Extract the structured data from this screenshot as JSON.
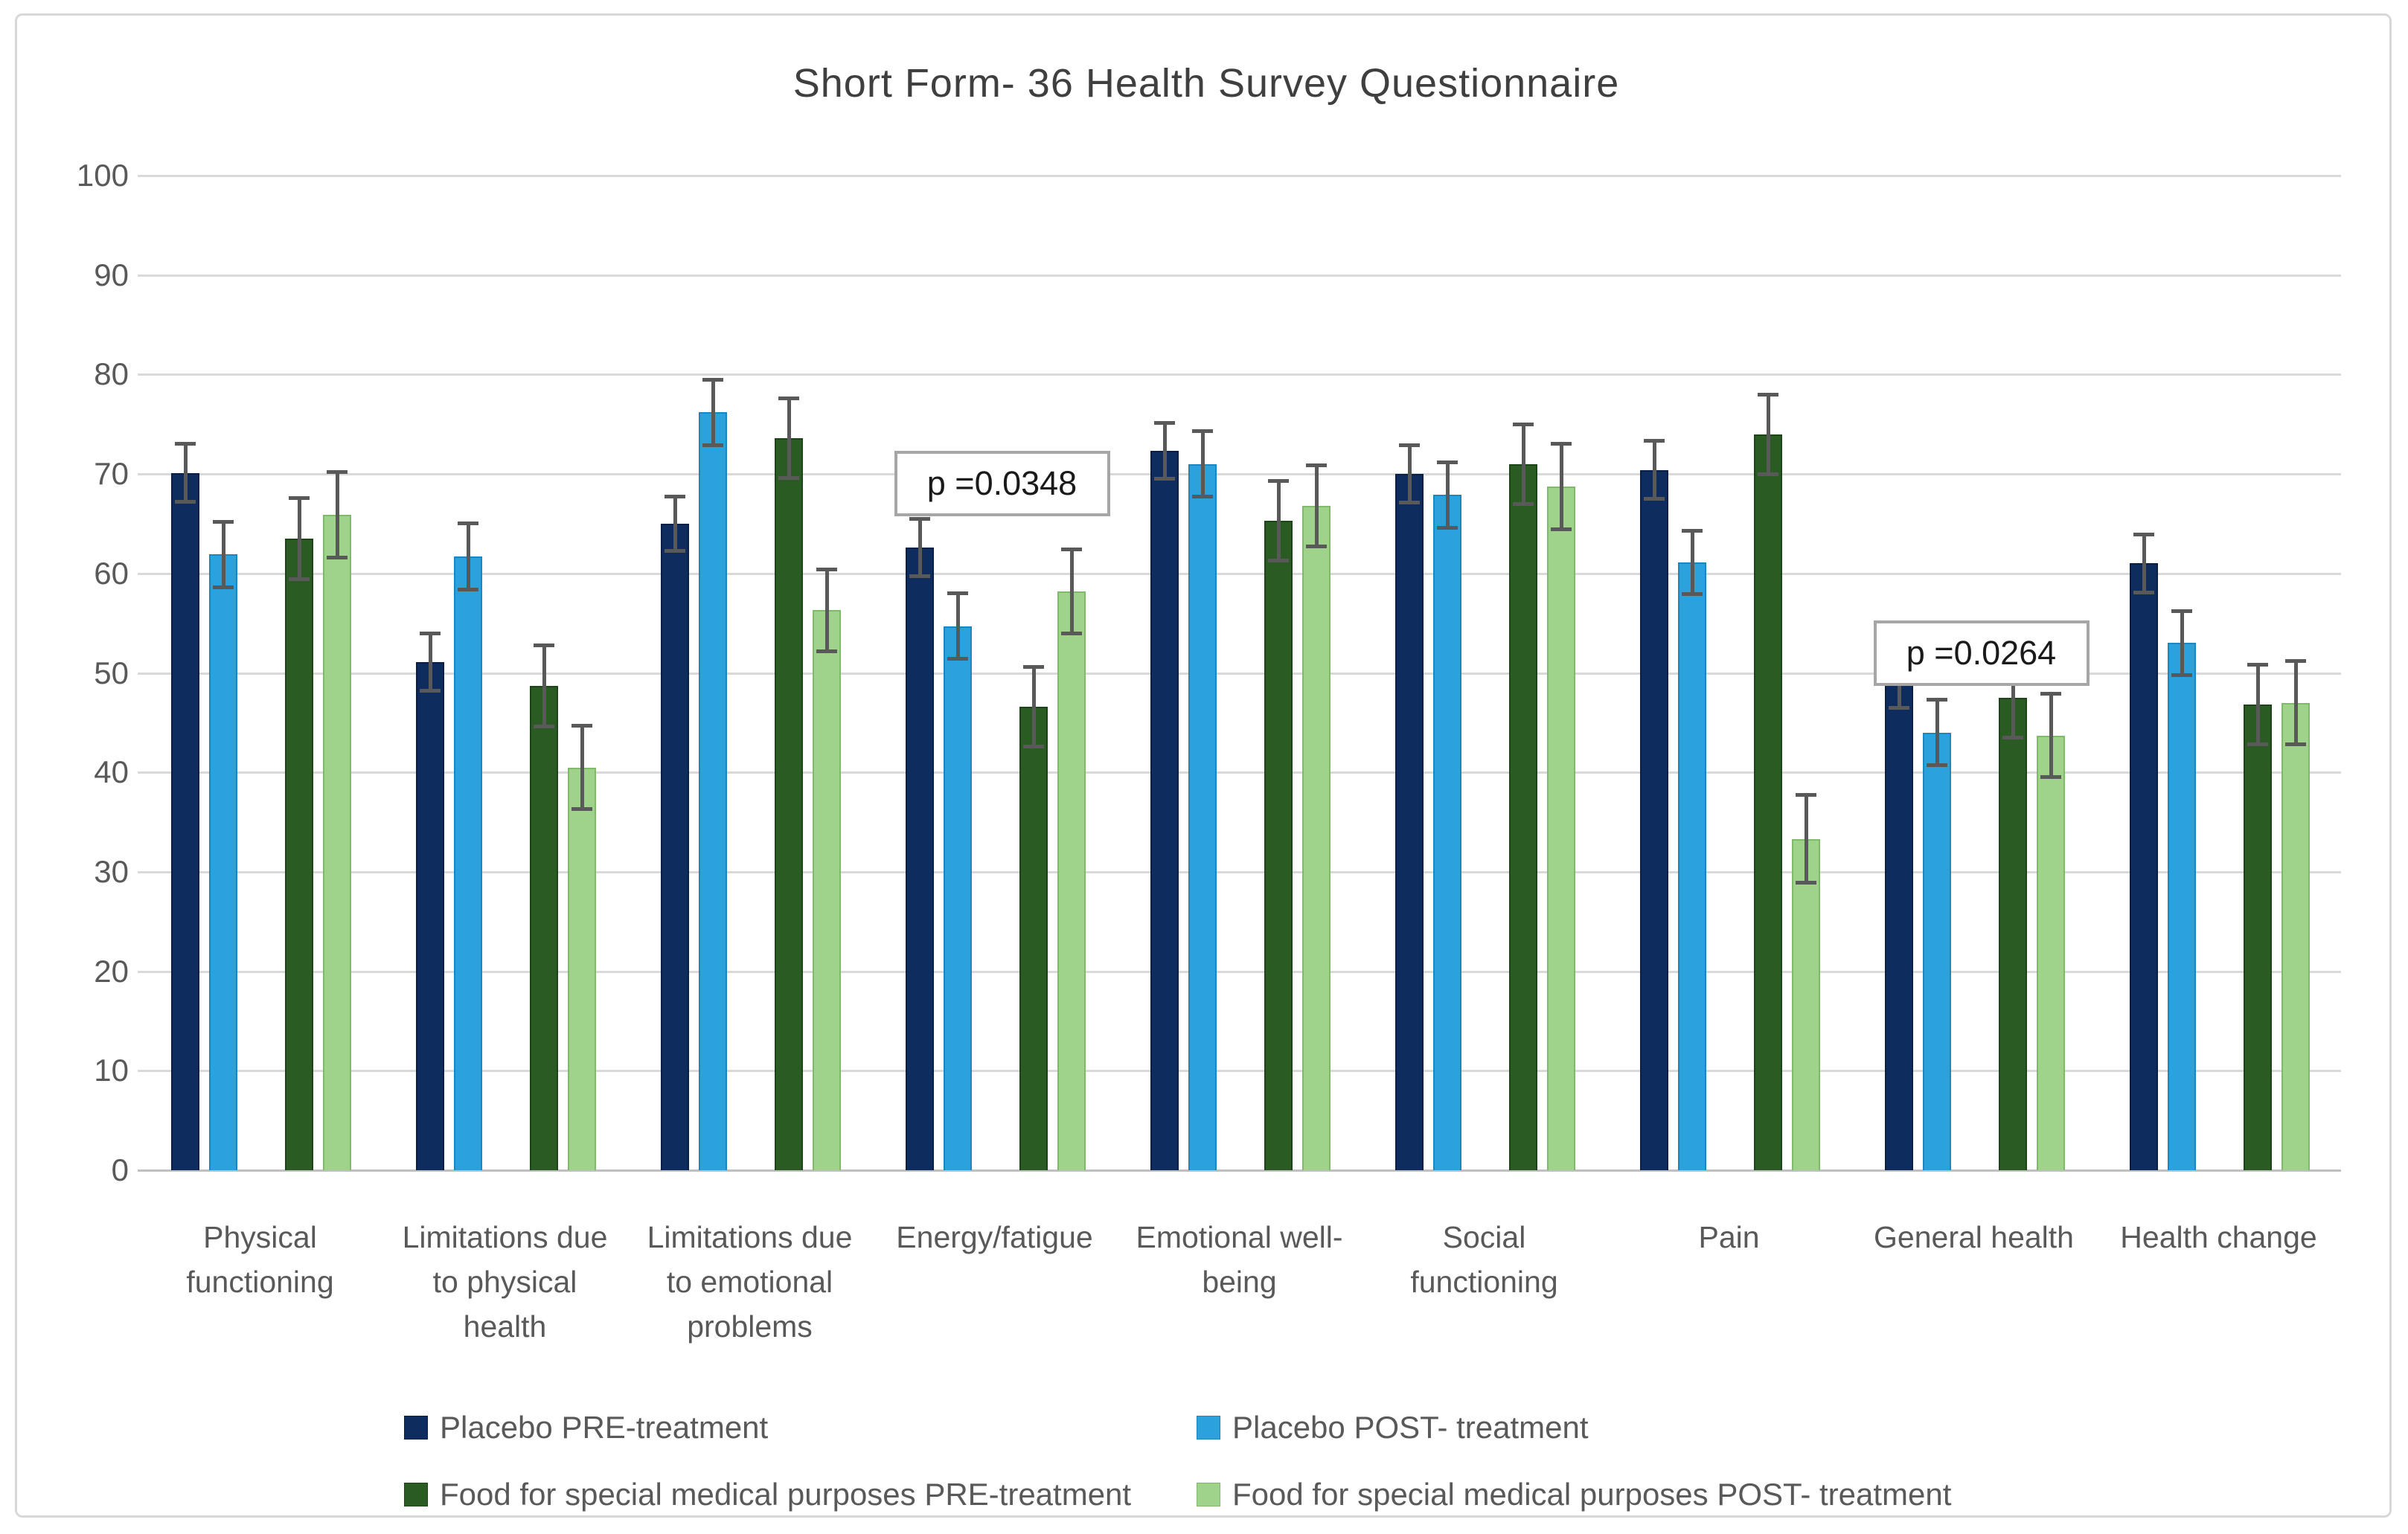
{
  "chart_data": {
    "type": "bar",
    "title": "Short Form- 36 Health Survey Questionnaire",
    "categories": [
      "Physical\nfunctioning",
      "Limitations due\nto physical\nhealth",
      "Limitations due\nto emotional\nproblems",
      "Energy/fatigue",
      "Emotional well-\nbeing",
      "Social\nfunctioning",
      "Pain",
      "General health",
      "Health change"
    ],
    "series": [
      {
        "name": "Placebo PRE-treatment",
        "color": "#0F2C5F",
        "border_color": "#0A1F45",
        "values": [
          70.1,
          51.1,
          65.0,
          62.6,
          72.3,
          70.0,
          70.4,
          49.4,
          61.0
        ],
        "errors": [
          2.9,
          2.9,
          2.7,
          2.9,
          2.8,
          2.9,
          2.9,
          2.9,
          2.9
        ]
      },
      {
        "name": "Placebo POST- treatment",
        "color": "#2BA2DC",
        "border_color": "#1E86BE",
        "values": [
          61.9,
          61.7,
          76.2,
          54.7,
          71.0,
          67.9,
          61.1,
          44.0,
          53.0
        ],
        "errors": [
          3.3,
          3.3,
          3.3,
          3.3,
          3.3,
          3.3,
          3.2,
          3.3,
          3.2
        ]
      },
      {
        "name": "Food for special medical purposes PRE-treatment",
        "color": "#2A5B22",
        "border_color": "#1E451A",
        "values": [
          63.5,
          48.7,
          73.6,
          46.6,
          65.3,
          71.0,
          74.0,
          47.5,
          46.8
        ],
        "errors": [
          4.1,
          4.1,
          4.0,
          4.0,
          4.0,
          4.0,
          4.0,
          4.0,
          4.0
        ]
      },
      {
        "name": "Food for special medical purposes POST- treatment",
        "color": "#9FD28B",
        "border_color": "#7FB96A",
        "values": [
          65.9,
          40.5,
          56.3,
          58.2,
          66.8,
          68.7,
          33.3,
          43.7,
          47.0
        ],
        "errors": [
          4.3,
          4.2,
          4.1,
          4.2,
          4.1,
          4.3,
          4.4,
          4.2,
          4.2
        ]
      }
    ],
    "ylim": [
      0,
      100
    ],
    "ytick_step": 10,
    "ytick_labels": [
      "0",
      "10",
      "20",
      "30",
      "40",
      "50",
      "60",
      "70",
      "80",
      "90",
      "100"
    ],
    "grid": true,
    "gridline_color": "#D9D9D9",
    "error_bar_color": "#595959",
    "legend_position": "bottom",
    "annotations": [
      {
        "label": "p =0.0348",
        "category_index": 3,
        "value": 69
      },
      {
        "label": "p =0.0264",
        "category_index": 7,
        "value": 52
      }
    ]
  }
}
